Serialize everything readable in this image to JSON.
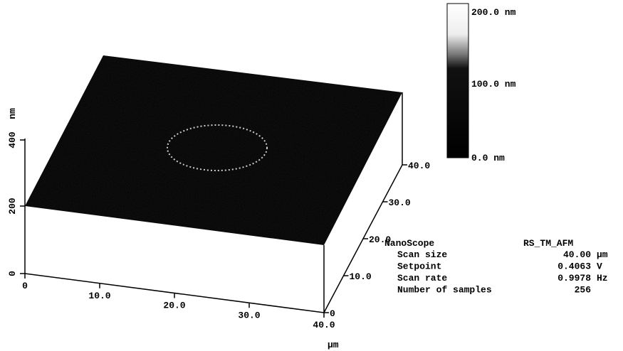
{
  "plot": {
    "z_axis": {
      "ticks": [
        "0",
        "200",
        "400"
      ],
      "unit": "nm"
    },
    "x_axis": {
      "ticks": [
        "0",
        "10.0",
        "20.0",
        "30.0",
        "40.0"
      ],
      "unit": "µm"
    },
    "y_axis": {
      "ticks": [
        "0",
        "10.0",
        "20.0",
        "30.0",
        "40.0"
      ]
    }
  },
  "colorbar": {
    "labels": [
      "200.0 nm",
      "100.0 nm",
      "0.0 nm"
    ]
  },
  "info": {
    "title": "NanoScope",
    "mode": "RS_TM_AFM",
    "rows": [
      {
        "label": "Scan size",
        "value": "40.00",
        "unit": "µm"
      },
      {
        "label": "Setpoint",
        "value": "0.4063",
        "unit": "V"
      },
      {
        "label": "Scan rate",
        "value": "0.9978",
        "unit": "Hz"
      },
      {
        "label": "Number of samples",
        "value": "256"
      }
    ]
  }
}
